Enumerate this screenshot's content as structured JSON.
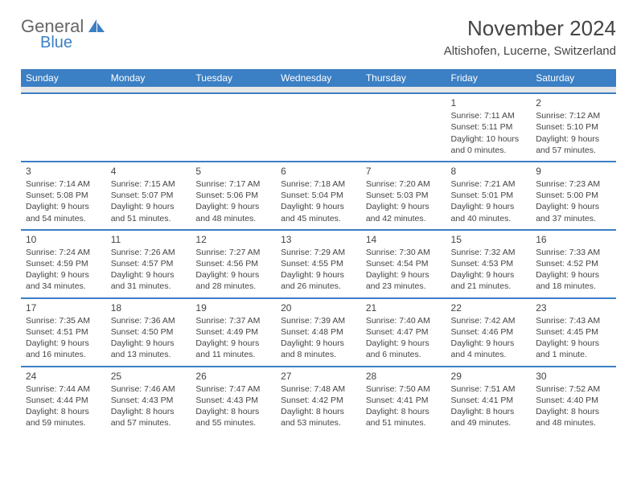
{
  "brand": {
    "part1": "General",
    "part2": "Blue"
  },
  "title": "November 2024",
  "location": "Altishofen, Lucerne, Switzerland",
  "header_bg": "#3b7fc4",
  "header_fg": "#ffffff",
  "cell_border": "#3b7fc4",
  "sep_bg": "#e8e8e8",
  "daynames": [
    "Sunday",
    "Monday",
    "Tuesday",
    "Wednesday",
    "Thursday",
    "Friday",
    "Saturday"
  ],
  "weeks": [
    [
      null,
      null,
      null,
      null,
      null,
      {
        "n": "1",
        "sr": "Sunrise: 7:11 AM",
        "ss": "Sunset: 5:11 PM",
        "dl1": "Daylight: 10 hours",
        "dl2": "and 0 minutes."
      },
      {
        "n": "2",
        "sr": "Sunrise: 7:12 AM",
        "ss": "Sunset: 5:10 PM",
        "dl1": "Daylight: 9 hours",
        "dl2": "and 57 minutes."
      }
    ],
    [
      {
        "n": "3",
        "sr": "Sunrise: 7:14 AM",
        "ss": "Sunset: 5:08 PM",
        "dl1": "Daylight: 9 hours",
        "dl2": "and 54 minutes."
      },
      {
        "n": "4",
        "sr": "Sunrise: 7:15 AM",
        "ss": "Sunset: 5:07 PM",
        "dl1": "Daylight: 9 hours",
        "dl2": "and 51 minutes."
      },
      {
        "n": "5",
        "sr": "Sunrise: 7:17 AM",
        "ss": "Sunset: 5:06 PM",
        "dl1": "Daylight: 9 hours",
        "dl2": "and 48 minutes."
      },
      {
        "n": "6",
        "sr": "Sunrise: 7:18 AM",
        "ss": "Sunset: 5:04 PM",
        "dl1": "Daylight: 9 hours",
        "dl2": "and 45 minutes."
      },
      {
        "n": "7",
        "sr": "Sunrise: 7:20 AM",
        "ss": "Sunset: 5:03 PM",
        "dl1": "Daylight: 9 hours",
        "dl2": "and 42 minutes."
      },
      {
        "n": "8",
        "sr": "Sunrise: 7:21 AM",
        "ss": "Sunset: 5:01 PM",
        "dl1": "Daylight: 9 hours",
        "dl2": "and 40 minutes."
      },
      {
        "n": "9",
        "sr": "Sunrise: 7:23 AM",
        "ss": "Sunset: 5:00 PM",
        "dl1": "Daylight: 9 hours",
        "dl2": "and 37 minutes."
      }
    ],
    [
      {
        "n": "10",
        "sr": "Sunrise: 7:24 AM",
        "ss": "Sunset: 4:59 PM",
        "dl1": "Daylight: 9 hours",
        "dl2": "and 34 minutes."
      },
      {
        "n": "11",
        "sr": "Sunrise: 7:26 AM",
        "ss": "Sunset: 4:57 PM",
        "dl1": "Daylight: 9 hours",
        "dl2": "and 31 minutes."
      },
      {
        "n": "12",
        "sr": "Sunrise: 7:27 AM",
        "ss": "Sunset: 4:56 PM",
        "dl1": "Daylight: 9 hours",
        "dl2": "and 28 minutes."
      },
      {
        "n": "13",
        "sr": "Sunrise: 7:29 AM",
        "ss": "Sunset: 4:55 PM",
        "dl1": "Daylight: 9 hours",
        "dl2": "and 26 minutes."
      },
      {
        "n": "14",
        "sr": "Sunrise: 7:30 AM",
        "ss": "Sunset: 4:54 PM",
        "dl1": "Daylight: 9 hours",
        "dl2": "and 23 minutes."
      },
      {
        "n": "15",
        "sr": "Sunrise: 7:32 AM",
        "ss": "Sunset: 4:53 PM",
        "dl1": "Daylight: 9 hours",
        "dl2": "and 21 minutes."
      },
      {
        "n": "16",
        "sr": "Sunrise: 7:33 AM",
        "ss": "Sunset: 4:52 PM",
        "dl1": "Daylight: 9 hours",
        "dl2": "and 18 minutes."
      }
    ],
    [
      {
        "n": "17",
        "sr": "Sunrise: 7:35 AM",
        "ss": "Sunset: 4:51 PM",
        "dl1": "Daylight: 9 hours",
        "dl2": "and 16 minutes."
      },
      {
        "n": "18",
        "sr": "Sunrise: 7:36 AM",
        "ss": "Sunset: 4:50 PM",
        "dl1": "Daylight: 9 hours",
        "dl2": "and 13 minutes."
      },
      {
        "n": "19",
        "sr": "Sunrise: 7:37 AM",
        "ss": "Sunset: 4:49 PM",
        "dl1": "Daylight: 9 hours",
        "dl2": "and 11 minutes."
      },
      {
        "n": "20",
        "sr": "Sunrise: 7:39 AM",
        "ss": "Sunset: 4:48 PM",
        "dl1": "Daylight: 9 hours",
        "dl2": "and 8 minutes."
      },
      {
        "n": "21",
        "sr": "Sunrise: 7:40 AM",
        "ss": "Sunset: 4:47 PM",
        "dl1": "Daylight: 9 hours",
        "dl2": "and 6 minutes."
      },
      {
        "n": "22",
        "sr": "Sunrise: 7:42 AM",
        "ss": "Sunset: 4:46 PM",
        "dl1": "Daylight: 9 hours",
        "dl2": "and 4 minutes."
      },
      {
        "n": "23",
        "sr": "Sunrise: 7:43 AM",
        "ss": "Sunset: 4:45 PM",
        "dl1": "Daylight: 9 hours",
        "dl2": "and 1 minute."
      }
    ],
    [
      {
        "n": "24",
        "sr": "Sunrise: 7:44 AM",
        "ss": "Sunset: 4:44 PM",
        "dl1": "Daylight: 8 hours",
        "dl2": "and 59 minutes."
      },
      {
        "n": "25",
        "sr": "Sunrise: 7:46 AM",
        "ss": "Sunset: 4:43 PM",
        "dl1": "Daylight: 8 hours",
        "dl2": "and 57 minutes."
      },
      {
        "n": "26",
        "sr": "Sunrise: 7:47 AM",
        "ss": "Sunset: 4:43 PM",
        "dl1": "Daylight: 8 hours",
        "dl2": "and 55 minutes."
      },
      {
        "n": "27",
        "sr": "Sunrise: 7:48 AM",
        "ss": "Sunset: 4:42 PM",
        "dl1": "Daylight: 8 hours",
        "dl2": "and 53 minutes."
      },
      {
        "n": "28",
        "sr": "Sunrise: 7:50 AM",
        "ss": "Sunset: 4:41 PM",
        "dl1": "Daylight: 8 hours",
        "dl2": "and 51 minutes."
      },
      {
        "n": "29",
        "sr": "Sunrise: 7:51 AM",
        "ss": "Sunset: 4:41 PM",
        "dl1": "Daylight: 8 hours",
        "dl2": "and 49 minutes."
      },
      {
        "n": "30",
        "sr": "Sunrise: 7:52 AM",
        "ss": "Sunset: 4:40 PM",
        "dl1": "Daylight: 8 hours",
        "dl2": "and 48 minutes."
      }
    ]
  ]
}
